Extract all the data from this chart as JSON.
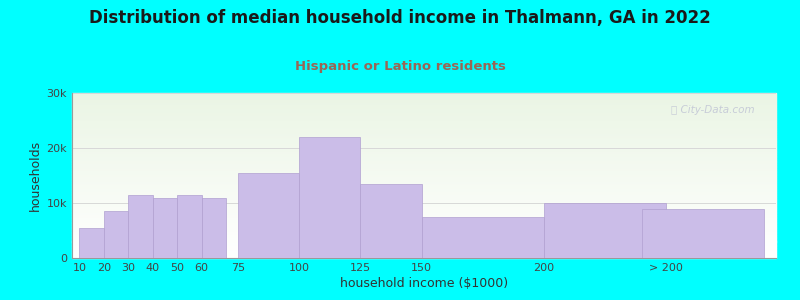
{
  "title": "Distribution of median household income in Thalmann, GA in 2022",
  "subtitle": "Hispanic or Latino residents",
  "xlabel": "household income ($1000)",
  "ylabel": "households",
  "title_fontsize": 12,
  "subtitle_fontsize": 9.5,
  "subtitle_color": "#996655",
  "bar_color": "#cbbde8",
  "bar_edge_color": "#b0a0d0",
  "background_color": "#00ffff",
  "watermark_text": "Ⓣ City-Data.com",
  "categories": [
    "10",
    "20",
    "30",
    "40",
    "50",
    "60",
    "75",
    "100",
    "125",
    "150",
    "200",
    "> 200"
  ],
  "values": [
    5500,
    8500,
    11500,
    11000,
    11500,
    11000,
    15500,
    22000,
    13500,
    7500,
    10000,
    9000
  ],
  "ylim": [
    0,
    30000
  ],
  "yticks": [
    0,
    10000,
    20000,
    30000
  ],
  "ytick_labels": [
    "0",
    "10k",
    "20k",
    "30k"
  ],
  "bar_positions": [
    10,
    20,
    30,
    40,
    50,
    60,
    75,
    100,
    125,
    150,
    200,
    240
  ],
  "bar_actual_widths": [
    10,
    10,
    10,
    10,
    10,
    10,
    25,
    25,
    25,
    50,
    50,
    50
  ],
  "xtick_positions": [
    10,
    20,
    30,
    40,
    50,
    60,
    75,
    100,
    125,
    150,
    200,
    250
  ],
  "xlim_left": 7,
  "xlim_right": 295
}
